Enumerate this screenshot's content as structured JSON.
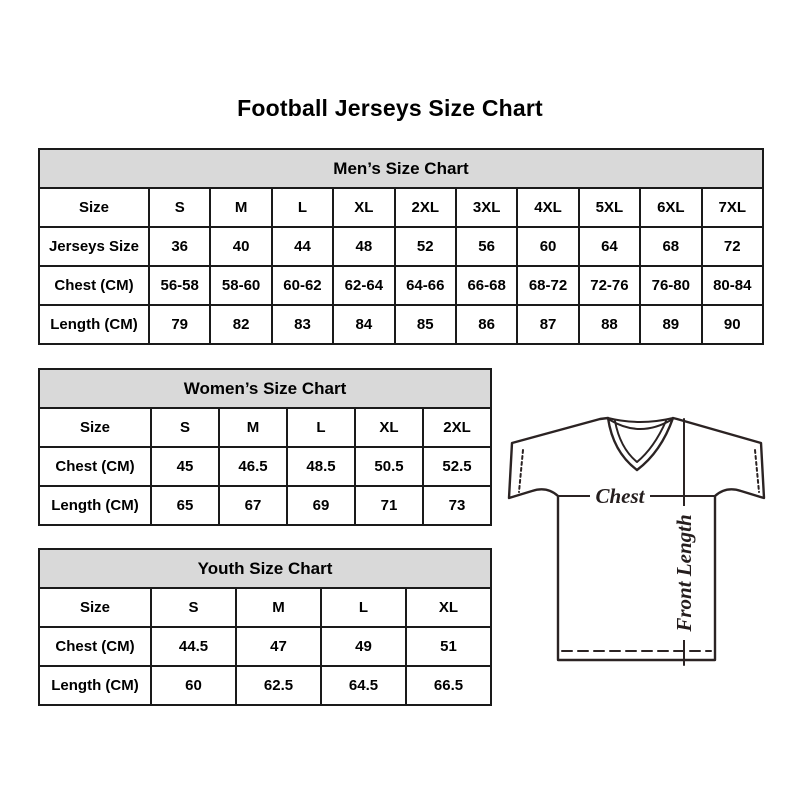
{
  "page": {
    "title": "Football Jerseys Size Chart"
  },
  "chart_data": [
    {
      "type": "table",
      "id": "mens",
      "title": "Men’s Size Chart",
      "columns": [
        "Size",
        "S",
        "M",
        "L",
        "XL",
        "2XL",
        "3XL",
        "4XL",
        "5XL",
        "6XL",
        "7XL"
      ],
      "rows": [
        [
          "Jerseys Size",
          "36",
          "40",
          "44",
          "48",
          "52",
          "56",
          "60",
          "64",
          "68",
          "72"
        ],
        [
          "Chest (CM)",
          "56-58",
          "58-60",
          "60-62",
          "62-64",
          "64-66",
          "66-68",
          "68-72",
          "72-76",
          "76-80",
          "80-84"
        ],
        [
          "Length (CM)",
          "79",
          "82",
          "83",
          "84",
          "85",
          "86",
          "87",
          "88",
          "89",
          "90"
        ]
      ]
    },
    {
      "type": "table",
      "id": "womens",
      "title": "Women’s Size Chart",
      "columns": [
        "Size",
        "S",
        "M",
        "L",
        "XL",
        "2XL"
      ],
      "rows": [
        [
          "Chest (CM)",
          "45",
          "46.5",
          "48.5",
          "50.5",
          "52.5"
        ],
        [
          "Length (CM)",
          "65",
          "67",
          "69",
          "71",
          "73"
        ]
      ]
    },
    {
      "type": "table",
      "id": "youth",
      "title": "Youth Size Chart",
      "columns": [
        "Size",
        "S",
        "M",
        "L",
        "XL"
      ],
      "rows": [
        [
          "Chest (CM)",
          "44.5",
          "47",
          "49",
          "51"
        ],
        [
          "Length (CM)",
          "60",
          "62.5",
          "64.5",
          "66.5"
        ]
      ]
    }
  ],
  "diagram": {
    "chest_label": "Chest",
    "front_length_label": "Front Length"
  },
  "colors": {
    "table_header_bg": "#d9d9d9",
    "table_border": "#1a1a1a",
    "text": "#000000",
    "diagram_stroke": "#2b2323",
    "background": "#ffffff"
  }
}
